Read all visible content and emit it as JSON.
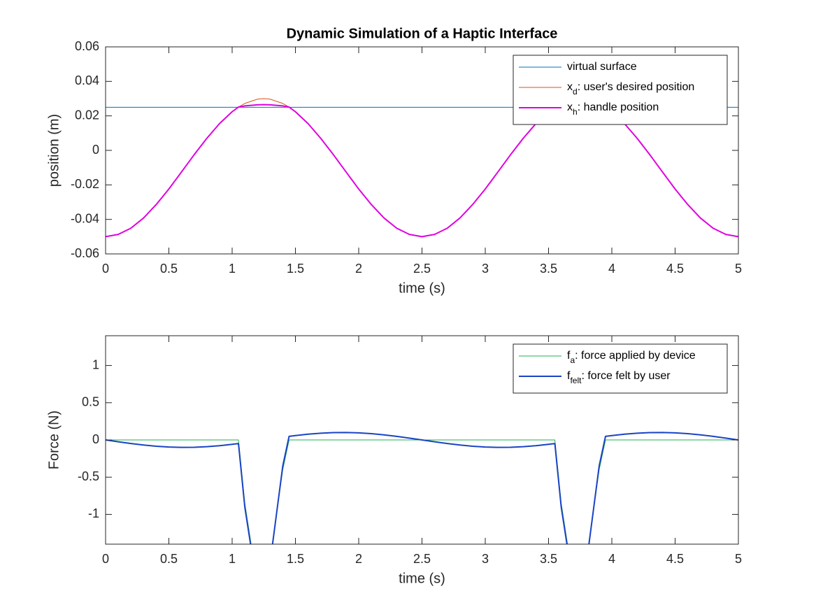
{
  "chart_data": [
    {
      "type": "line",
      "title": "Dynamic Simulation of a Haptic Interface",
      "xlabel": "time (s)",
      "ylabel": "position (m)",
      "xlim": [
        0,
        5
      ],
      "ylim": [
        -0.06,
        0.06
      ],
      "xticks": [
        0,
        0.5,
        1,
        1.5,
        2,
        2.5,
        3,
        3.5,
        4,
        4.5,
        5
      ],
      "yticks": [
        -0.06,
        -0.04,
        -0.02,
        0,
        0.02,
        0.04,
        0.06
      ],
      "grid": false,
      "legend": "northeast",
      "x": [
        0,
        0.1,
        0.2,
        0.3,
        0.4,
        0.5,
        0.6,
        0.7,
        0.8,
        0.9,
        1,
        1.05,
        1.1,
        1.2,
        1.25,
        1.3,
        1.4,
        1.45,
        1.5,
        1.6,
        1.7,
        1.8,
        1.9,
        2,
        2.1,
        2.2,
        2.3,
        2.4,
        2.5,
        2.6,
        2.7,
        2.8,
        2.9,
        3,
        3.1,
        3.2,
        3.3,
        3.4,
        3.5,
        3.55,
        3.6,
        3.7,
        3.75,
        3.8,
        3.9,
        3.95,
        4,
        4.1,
        4.2,
        4.3,
        4.4,
        4.5,
        4.6,
        4.7,
        4.8,
        4.9,
        5
      ],
      "series": [
        {
          "name": "virtual surface",
          "color": "#0072BD",
          "width": 1,
          "x": [
            0,
            5
          ],
          "values": [
            0.025,
            0.025
          ]
        },
        {
          "name": [
            "x",
            "d",
            ": user's desired position"
          ],
          "color": "#D95319",
          "width": 1,
          "values": [
            -0.05,
            -0.0487,
            -0.0451,
            -0.0392,
            -0.0314,
            -0.0224,
            -0.0125,
            -0.0025,
            0.007,
            0.0155,
            0.0224,
            0.0251,
            0.0272,
            0.0297,
            0.03,
            0.0297,
            0.0272,
            0.0251,
            0.0224,
            0.0155,
            0.007,
            -0.0025,
            -0.0125,
            -0.0224,
            -0.0314,
            -0.0392,
            -0.0451,
            -0.0487,
            -0.05,
            -0.0487,
            -0.0451,
            -0.0392,
            -0.0314,
            -0.0224,
            -0.0125,
            -0.0025,
            0.007,
            0.0155,
            0.0224,
            0.0251,
            0.0272,
            0.0297,
            0.03,
            0.0297,
            0.0272,
            0.0251,
            0.0224,
            0.0155,
            0.007,
            -0.0025,
            -0.0125,
            -0.0224,
            -0.0314,
            -0.0392,
            -0.0451,
            -0.0487,
            -0.05
          ]
        },
        {
          "name": [
            "x",
            "h",
            ": handle position"
          ],
          "color": "#E000E0",
          "width": 2,
          "values": [
            -0.05,
            -0.0487,
            -0.0451,
            -0.0392,
            -0.0314,
            -0.0224,
            -0.0125,
            -0.0025,
            0.007,
            0.0155,
            0.0224,
            0.0251,
            0.0258,
            0.0264,
            0.0265,
            0.0264,
            0.0258,
            0.0251,
            0.0224,
            0.0155,
            0.007,
            -0.0025,
            -0.0125,
            -0.0224,
            -0.0314,
            -0.0392,
            -0.0451,
            -0.0487,
            -0.05,
            -0.0487,
            -0.0451,
            -0.0392,
            -0.0314,
            -0.0224,
            -0.0125,
            -0.0025,
            0.007,
            0.0155,
            0.0224,
            0.0251,
            0.0258,
            0.0264,
            0.0265,
            0.0264,
            0.0258,
            0.0251,
            0.0224,
            0.0155,
            0.007,
            -0.0025,
            -0.0125,
            -0.0224,
            -0.0314,
            -0.0392,
            -0.0451,
            -0.0487,
            -0.05
          ]
        }
      ]
    },
    {
      "type": "line",
      "xlabel": "time (s)",
      "ylabel": "Force (N)",
      "xlim": [
        0,
        5
      ],
      "ylim": [
        -1.4,
        1.4
      ],
      "xticks": [
        0,
        0.5,
        1,
        1.5,
        2,
        2.5,
        3,
        3.5,
        4,
        4.5,
        5
      ],
      "yticks": [
        -1,
        -0.5,
        0,
        0.5,
        1
      ],
      "grid": false,
      "legend": "northeast",
      "x": [
        0,
        0.1,
        0.2,
        0.3,
        0.4,
        0.5,
        0.6,
        0.7,
        0.8,
        0.9,
        1,
        1.05,
        1.1,
        1.2,
        1.25,
        1.3,
        1.4,
        1.45,
        1.5,
        1.6,
        1.7,
        1.8,
        1.9,
        2,
        2.1,
        2.2,
        2.3,
        2.4,
        2.5,
        2.6,
        2.7,
        2.8,
        2.9,
        3,
        3.1,
        3.2,
        3.3,
        3.4,
        3.5,
        3.55,
        3.6,
        3.7,
        3.75,
        3.8,
        3.9,
        3.95,
        4,
        4.1,
        4.2,
        4.3,
        4.4,
        4.5,
        4.6,
        4.7,
        4.8,
        4.9,
        5
      ],
      "series": [
        {
          "name": [
            "f",
            "a",
            ": force applied by device"
          ],
          "color": "#20B050",
          "width": 1,
          "values": [
            0,
            0,
            0,
            0,
            0,
            0,
            0,
            0,
            0,
            0,
            0,
            0,
            -0.85,
            -1.95,
            -2.05,
            -1.6,
            -0.4,
            0,
            0,
            0,
            0,
            0,
            0,
            0,
            0,
            0,
            0,
            0,
            0,
            0,
            0,
            0,
            0,
            0,
            0,
            0,
            0,
            0,
            0,
            0,
            -0.85,
            -1.95,
            -2.05,
            -1.6,
            -0.4,
            0,
            0,
            0,
            0,
            0,
            0,
            0,
            0,
            0,
            0,
            0,
            0
          ]
        },
        {
          "name": [
            "f",
            "felt",
            ": force felt by user"
          ],
          "color": "#1A44C4",
          "width": 2,
          "values": [
            0,
            -0.0249,
            -0.0482,
            -0.0685,
            -0.0844,
            -0.0951,
            -0.0998,
            -0.0982,
            -0.0905,
            -0.0771,
            -0.0588,
            -0.0482,
            -0.9,
            -2,
            -2.1,
            -1.65,
            -0.35,
            0.0482,
            0.0588,
            0.0771,
            0.0905,
            0.0982,
            0.0998,
            0.0951,
            0.0844,
            0.0685,
            0.0482,
            0.0249,
            0,
            -0.0249,
            -0.0482,
            -0.0685,
            -0.0844,
            -0.0951,
            -0.0998,
            -0.0982,
            -0.0905,
            -0.0771,
            -0.0588,
            -0.0482,
            -0.9,
            -2,
            -2.1,
            -1.65,
            -0.35,
            0.0482,
            0.0588,
            0.0771,
            0.0905,
            0.0982,
            0.0998,
            0.0951,
            0.0844,
            0.0685,
            0.0482,
            0.0249,
            0
          ]
        }
      ]
    }
  ]
}
